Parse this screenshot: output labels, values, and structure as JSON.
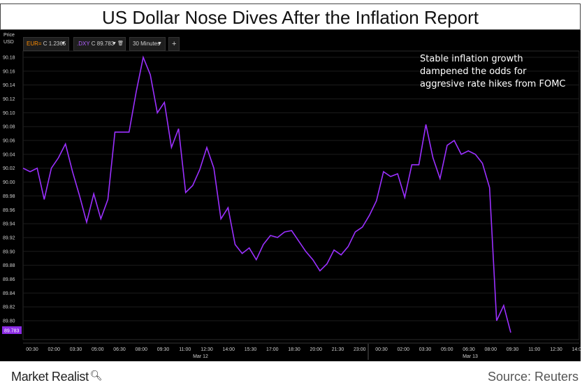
{
  "header": {
    "title": "US Dollar Nose Dives After the Inflation Report"
  },
  "toolbar": {
    "price_label_line1": "Price",
    "price_label_line2": "USD",
    "eur_prefix": "EUR=",
    "eur_value": "C 1.2365",
    "dxy_prefix": ".DXY",
    "dxy_value": "C 89.783",
    "interval": "30 Minutes",
    "add_label": "+"
  },
  "footer": {
    "brand": "Market Realist",
    "source": "Source: Reuters"
  },
  "colors": {
    "line": "#9b30ff",
    "background": "#000000",
    "eur": "#ff8c00",
    "price_tag": "#8a2be2"
  },
  "chart_data": {
    "type": "line",
    "title": "US Dollar Nose Dives After the Inflation Report",
    "ylabel": "USD",
    "ylim": [
      89.78,
      90.19
    ],
    "yticks": [
      "90.18",
      "90.16",
      "90.14",
      "90.12",
      "90.10",
      "90.08",
      "90.06",
      "90.04",
      "90.02",
      "90.00",
      "89.98",
      "89.96",
      "89.94",
      "89.92",
      "89.90",
      "89.88",
      "89.86",
      "89.84",
      "89.82",
      "89.80"
    ],
    "xticks": [
      "00:30",
      "02:00",
      "03:30",
      "05:00",
      "06:30",
      "08:00",
      "09:30",
      "11:00",
      "12:30",
      "14:00",
      "15:30",
      "17:00",
      "18:30",
      "20:00",
      "21:30",
      "23:00",
      "00:30",
      "02:00",
      "03:30",
      "05:00",
      "06:30",
      "08:00",
      "09:30",
      "11:00",
      "12:30",
      "14:00"
    ],
    "date_labels": [
      "Mar 12",
      "Mar 13"
    ],
    "last_price_tag": "89.783",
    "annotation": [
      "Stable inflation growth",
      "dampened the odds for",
      "aggresive rate hikes from FOMC"
    ],
    "series": [
      {
        "values": [
          90.02,
          90.015,
          90.02,
          89.975,
          90.02,
          90.035,
          90.055,
          90.015,
          89.98,
          89.942,
          89.983,
          89.947,
          89.975,
          90.072,
          90.072,
          90.072,
          90.13,
          90.18,
          90.155,
          90.1,
          90.115,
          90.05,
          90.077,
          89.985,
          89.995,
          90.018,
          90.05,
          90.02,
          89.947,
          89.963,
          89.91,
          89.897,
          89.905,
          89.888,
          89.91,
          89.923,
          89.92,
          89.928,
          89.93,
          89.915,
          89.9,
          89.888,
          89.872,
          89.882,
          89.902,
          89.895,
          89.907,
          89.928,
          89.935,
          89.952,
          89.973,
          90.015,
          90.008,
          90.012,
          89.978,
          90.025,
          90.025,
          90.083,
          90.035,
          90.005,
          90.053,
          90.06,
          90.04,
          90.045,
          90.04,
          90.027,
          89.992,
          89.8,
          89.822,
          89.783
        ]
      }
    ]
  }
}
